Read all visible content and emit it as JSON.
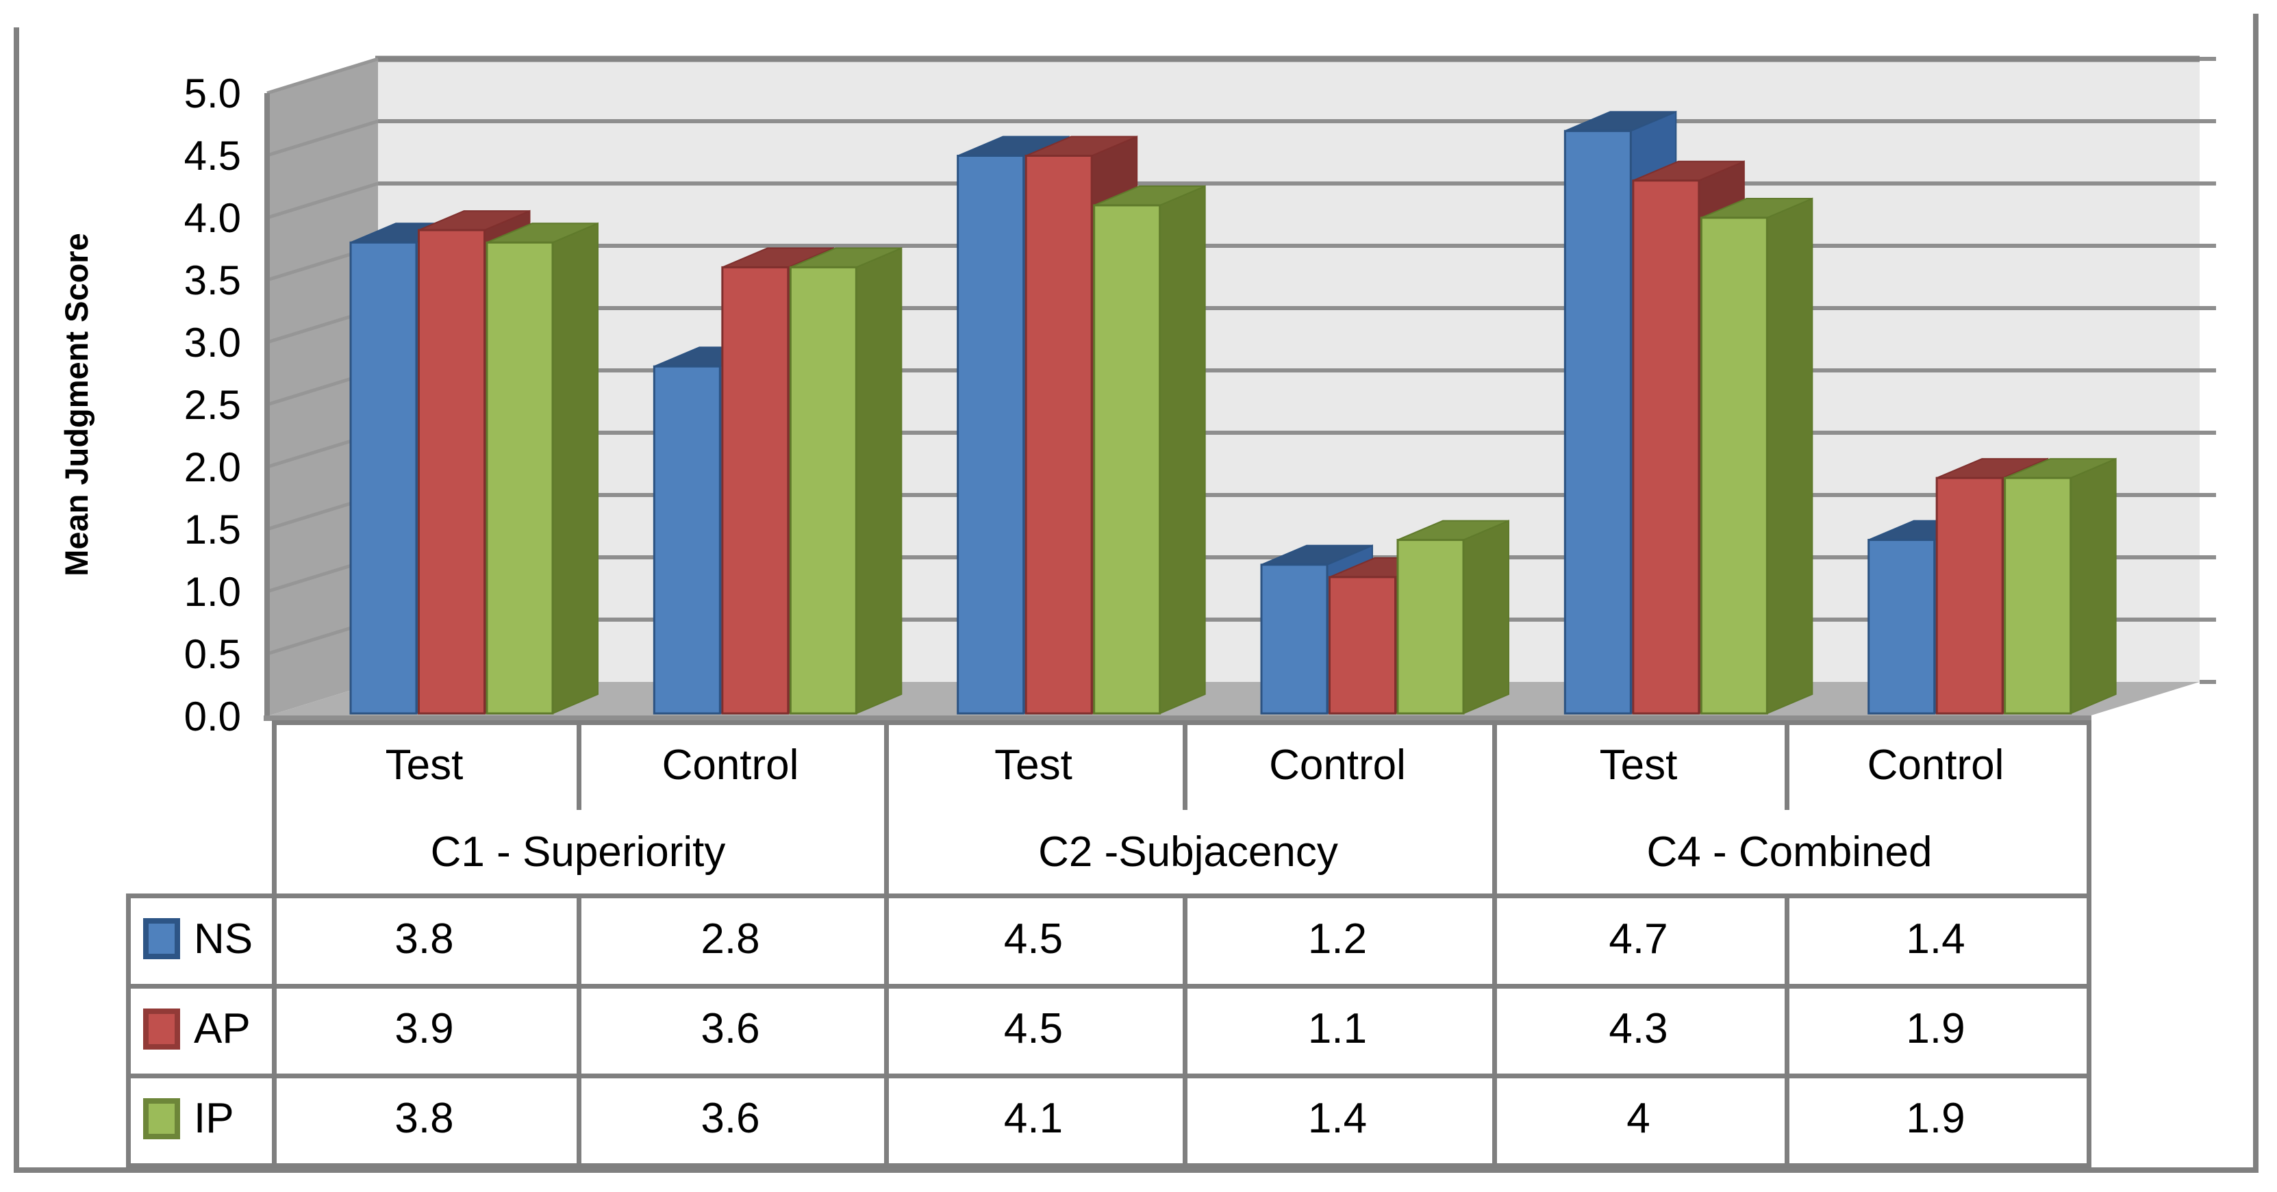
{
  "chart_data": {
    "type": "bar",
    "projection": "3d-column",
    "title": "",
    "ylabel": "Mean Judgment Score",
    "xlabel": "",
    "ylim": [
      0,
      5
    ],
    "ytick_step": 0.5,
    "ytick_labels": [
      "5.0",
      "4.5",
      "4.0",
      "3.5",
      "3.0",
      "2.5",
      "2.0",
      "1.5",
      "1.0",
      "0.5",
      "0.0"
    ],
    "grid": true,
    "legend_position": "table-left",
    "groups": [
      {
        "label": "C1 - Superiority",
        "conditions": [
          "Test",
          "Control"
        ]
      },
      {
        "label": "C2 -Subjacency",
        "conditions": [
          "Test",
          "Control"
        ]
      },
      {
        "label": "C4 - Combined",
        "conditions": [
          "Test",
          "Control"
        ]
      }
    ],
    "categories": [
      "Test",
      "Control",
      "Test",
      "Control",
      "Test",
      "Control"
    ],
    "series": [
      {
        "name": "NS",
        "values": [
          3.8,
          2.8,
          4.5,
          1.2,
          4.7,
          1.4
        ],
        "display": [
          "3.8",
          "2.8",
          "4.5",
          "1.2",
          "4.7",
          "1.4"
        ],
        "color": "#4F81BD",
        "top_color": "#2F5380",
        "side_color": "#35619B",
        "border_color": "#2C5382",
        "legend_border": "#2D5586"
      },
      {
        "name": "AP",
        "values": [
          3.9,
          3.6,
          4.5,
          1.1,
          4.3,
          1.9
        ],
        "display": [
          "3.9",
          "3.6",
          "4.5",
          "1.1",
          "4.3",
          "1.9"
        ],
        "color": "#C0504D",
        "top_color": "#8D3B38",
        "side_color": "#7E3230",
        "border_color": "#7F2F2D",
        "legend_border": "#923A37"
      },
      {
        "name": "IP",
        "values": [
          3.8,
          3.6,
          4.1,
          1.4,
          4.0,
          1.9
        ],
        "display": [
          "3.8",
          "3.6",
          "4.1",
          "1.4",
          "4",
          "1.9"
        ],
        "color": "#9BBB59",
        "top_color": "#6F8A38",
        "side_color": "#647D2E",
        "border_color": "#5F7A2B",
        "legend_border": "#6D8639"
      }
    ],
    "wall_colors": {
      "back_wall": "#E9E9E9",
      "side_wall": "#A5A5A5",
      "floor": "#B0B0B0",
      "gridline": "#8E8E8E",
      "wall_edge": "#848484",
      "frame_border": "#808080"
    }
  }
}
